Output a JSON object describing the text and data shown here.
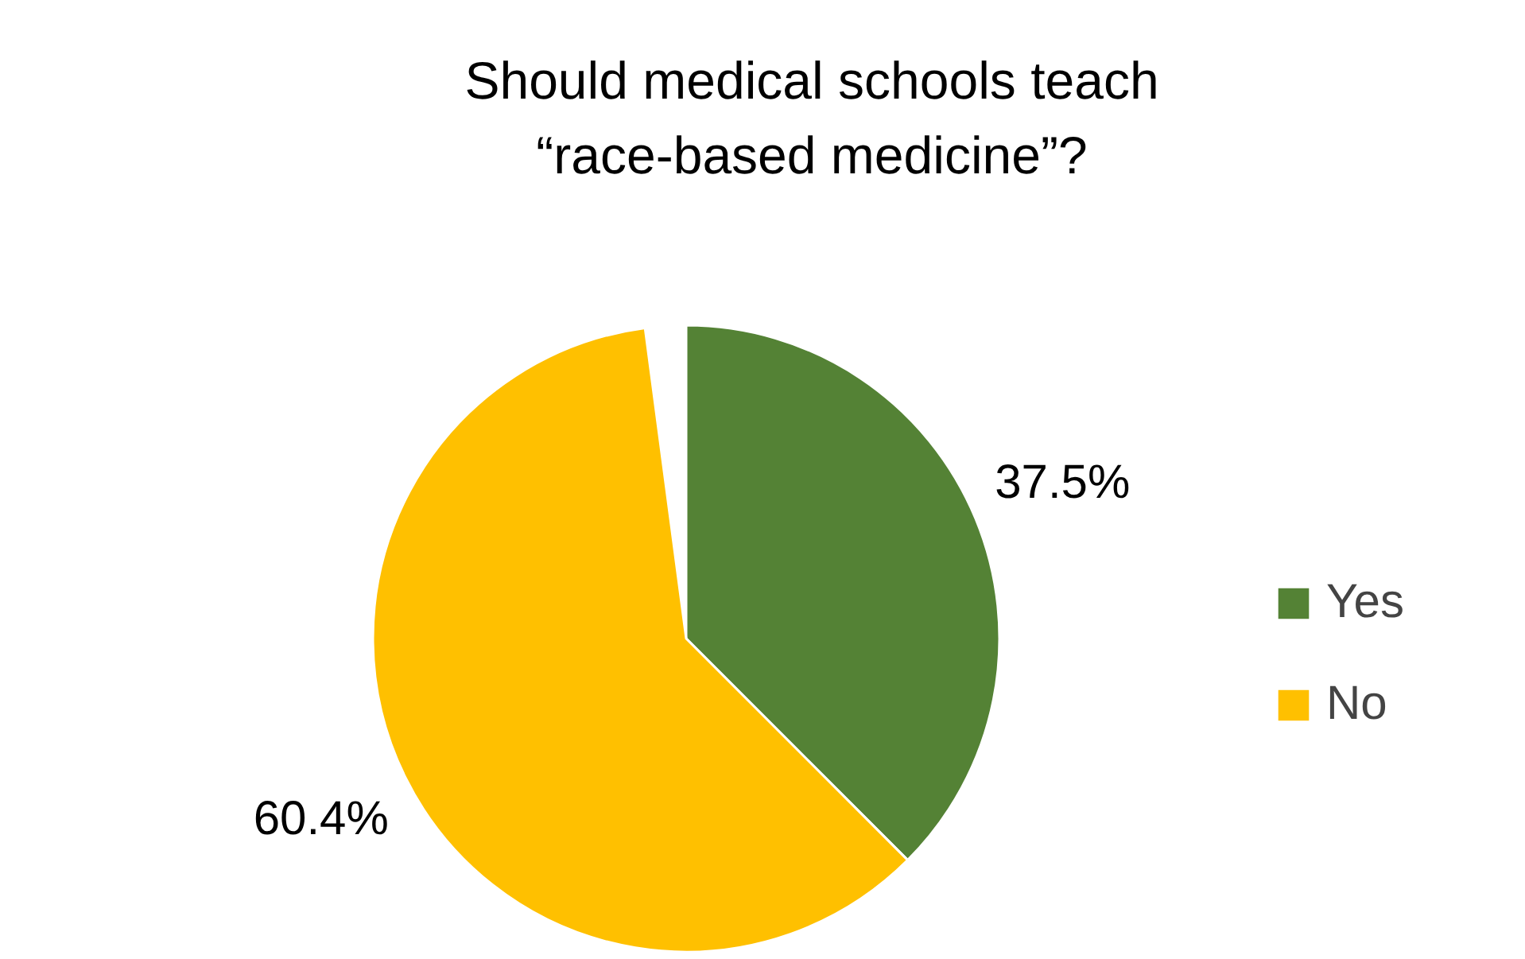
{
  "chart_data": {
    "type": "pie",
    "title": "Should medical schools teach “race-based medicine”?",
    "categories": [
      "Yes",
      "No"
    ],
    "values": [
      37.5,
      60.4
    ],
    "colors": [
      "#548235",
      "#ffc000"
    ],
    "value_labels": [
      "37.5%",
      "60.4%"
    ],
    "legend": "right"
  }
}
